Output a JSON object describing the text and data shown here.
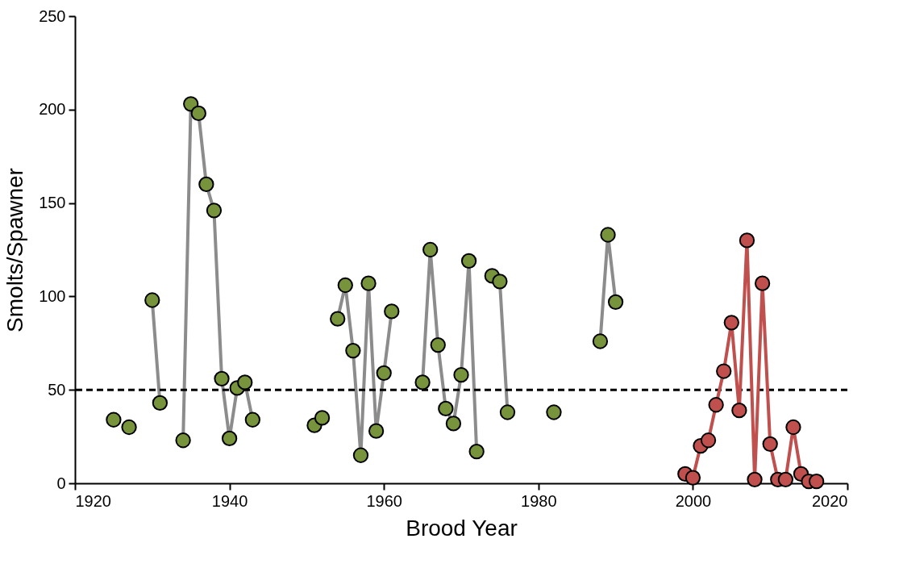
{
  "chart_data": {
    "type": "line",
    "xlabel": "Brood Year",
    "ylabel": "Smolts/Spawner",
    "xlim": [
      1920,
      2020
    ],
    "xticks": [
      1920,
      1940,
      1960,
      1980,
      2000,
      2020
    ],
    "ylim": [
      0,
      250
    ],
    "yticks": [
      0,
      50,
      100,
      150,
      200,
      250
    ],
    "grid": false,
    "marker": "circle",
    "line_style": "solid",
    "ref_lines": [
      {
        "axis": "y",
        "value": 50,
        "color": "#000000",
        "line_style": "dashed"
      }
    ],
    "series": [
      {
        "color": "#77933c",
        "x": [
          1925,
          1926,
          1927,
          1928,
          1929,
          1930,
          1931,
          1932,
          1933,
          1934,
          1935,
          1936,
          1937,
          1938,
          1939,
          1940,
          1941,
          1942,
          1943,
          1944,
          1945,
          1946,
          1947,
          1948,
          1949,
          1950,
          1951,
          1952,
          1953,
          1954,
          1955,
          1956,
          1957,
          1958,
          1959,
          1960,
          1961,
          1962,
          1963,
          1964,
          1965,
          1966,
          1967,
          1968,
          1969,
          1970,
          1971,
          1972,
          1973,
          1974,
          1975,
          1976,
          1977,
          1978,
          1979,
          1980,
          1981,
          1982,
          1983,
          1984,
          1985,
          1986,
          1987,
          1988,
          1989,
          1990
        ],
        "values": [
          34,
          null,
          30,
          null,
          null,
          98,
          43,
          null,
          null,
          23,
          203,
          198,
          160,
          146,
          56,
          24,
          51,
          54,
          34,
          null,
          null,
          null,
          null,
          null,
          null,
          null,
          31,
          35,
          null,
          88,
          106,
          71,
          15,
          107,
          28,
          59,
          92,
          null,
          null,
          null,
          54,
          125,
          74,
          40,
          32,
          58,
          119,
          17,
          null,
          111,
          108,
          38,
          null,
          null,
          null,
          null,
          null,
          38,
          null,
          null,
          null,
          null,
          null,
          76,
          133,
          97
        ]
      },
      {
        "color": "#c0504d",
        "x": [
          1999,
          2000,
          2001,
          2002,
          2003,
          2004,
          2005,
          2006,
          2007,
          2008,
          2009,
          2010,
          2011,
          2012,
          2013,
          2014,
          2015,
          2016
        ],
        "values": [
          5,
          3,
          20,
          23,
          42,
          60,
          86,
          39,
          130,
          2,
          107,
          21,
          2,
          2,
          30,
          5,
          1,
          1
        ]
      }
    ]
  }
}
